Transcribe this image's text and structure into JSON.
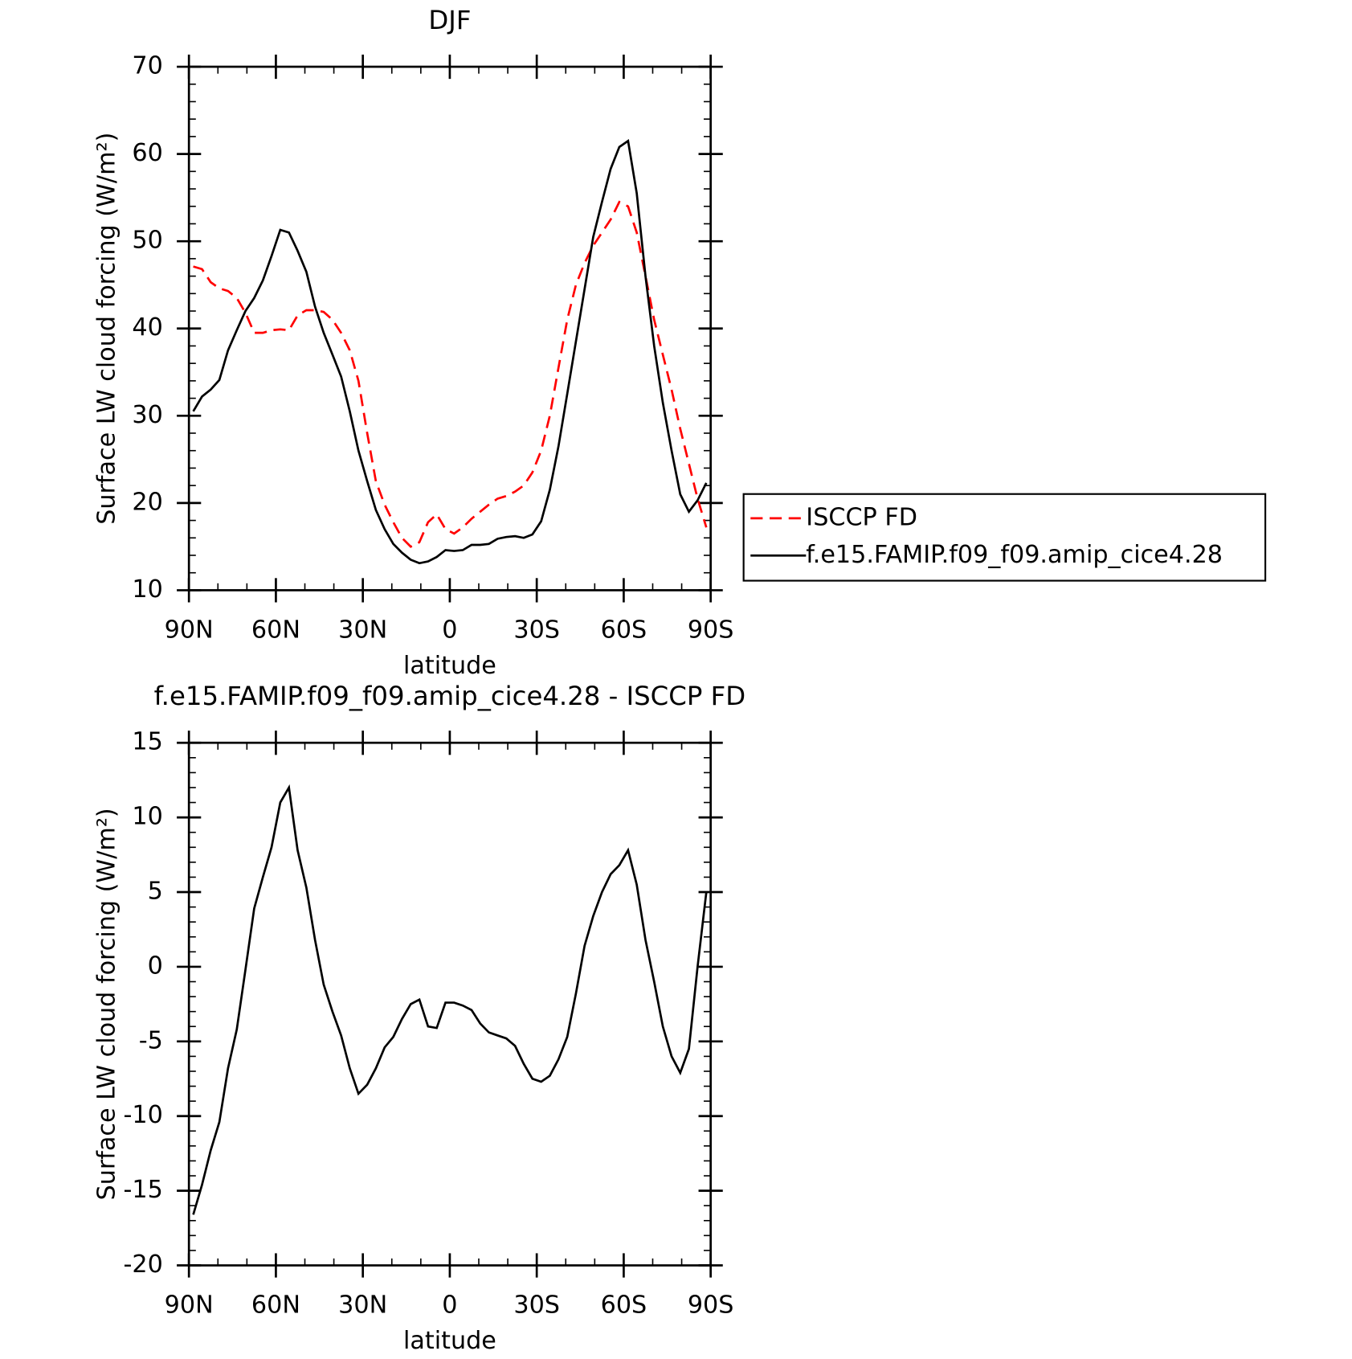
{
  "chart_data": [
    {
      "type": "line",
      "title": "DJF",
      "xlabel": "latitude",
      "ylabel": "Surface LW cloud forcing (W/m²)",
      "xlim": [
        90,
        -90
      ],
      "xticks": [
        {
          "value": 90,
          "label": "90N"
        },
        {
          "value": 60,
          "label": "60N"
        },
        {
          "value": 30,
          "label": "30N"
        },
        0,
        {
          "value": -30,
          "label": "30S"
        },
        {
          "value": -60,
          "label": "60S"
        },
        {
          "value": -90,
          "label": "90S"
        }
      ],
      "ylim": [
        10,
        70
      ],
      "yticks": [
        10,
        20,
        30,
        40,
        50,
        60,
        70
      ],
      "legend": "right",
      "x": [
        88.5,
        85.5,
        82.5,
        79.5,
        76.5,
        73.5,
        70.5,
        67.5,
        64.5,
        61.5,
        58.5,
        55.5,
        52.5,
        49.5,
        46.5,
        43.5,
        40.5,
        37.5,
        34.5,
        31.5,
        28.5,
        25.5,
        22.5,
        19.5,
        16.5,
        13.5,
        10.5,
        7.5,
        4.5,
        1.5,
        -1.5,
        -4.5,
        -7.5,
        -10.5,
        -13.5,
        -16.5,
        -19.5,
        -22.5,
        -25.5,
        -28.5,
        -31.5,
        -34.5,
        -37.5,
        -40.5,
        -43.5,
        -46.5,
        -49.5,
        -52.5,
        -55.5,
        -58.5,
        -61.5,
        -64.5,
        -67.5,
        -70.5,
        -73.5,
        -76.5,
        -79.5,
        -82.5,
        -85.5,
        -88.5
      ],
      "series": [
        {
          "name": "ISCCP FD",
          "color": "#ff0000",
          "dashed": true,
          "values": [
            47.1,
            46.8,
            45.3,
            44.6,
            44.3,
            43.5,
            41.8,
            39.5,
            39.5,
            39.8,
            39.9,
            39.8,
            41.5,
            42.1,
            42.1,
            41.9,
            41.0,
            39.5,
            37.5,
            34.0,
            28.0,
            22.5,
            19.8,
            17.8,
            16.0,
            15.0,
            15.5,
            17.8,
            18.7,
            17.0,
            16.5,
            17.2,
            18.2,
            19.0,
            19.8,
            20.5,
            20.8,
            21.3,
            22.0,
            23.5,
            26.0,
            30.0,
            35.5,
            41.0,
            45.0,
            47.5,
            49.5,
            51.0,
            52.5,
            54.5,
            54.0,
            51.0,
            46.0,
            41.0,
            37.0,
            33.0,
            28.5,
            24.5,
            20.5,
            17.2
          ]
        },
        {
          "name": "f.e15.FAMIP.f09_f09.amip_cice4.28",
          "color": "#000000",
          "dashed": false,
          "values": [
            30.5,
            32.2,
            33.0,
            34.1,
            37.5,
            39.8,
            42.0,
            43.5,
            45.5,
            48.3,
            51.3,
            51.0,
            48.9,
            46.5,
            42.5,
            39.5,
            37.0,
            34.5,
            30.5,
            26.0,
            22.5,
            19.2,
            17.0,
            15.3,
            14.3,
            13.5,
            13.1,
            13.3,
            13.8,
            14.6,
            14.5,
            14.6,
            15.2,
            15.2,
            15.3,
            15.9,
            16.1,
            16.2,
            16.0,
            16.4,
            17.9,
            21.5,
            26.5,
            32.5,
            38.5,
            44.5,
            50.5,
            54.5,
            58.3,
            60.8,
            61.5,
            55.5,
            46.0,
            38.0,
            31.5,
            26.0,
            21.0,
            19.0,
            20.3,
            22.3
          ]
        }
      ]
    },
    {
      "type": "line",
      "title": "f.e15.FAMIP.f09_f09.amip_cice4.28 - ISCCP FD",
      "xlabel": "latitude",
      "ylabel": "Surface LW cloud forcing (W/m²)",
      "xlim": [
        90,
        -90
      ],
      "xticks": [
        {
          "value": 90,
          "label": "90N"
        },
        {
          "value": 60,
          "label": "60N"
        },
        {
          "value": 30,
          "label": "30N"
        },
        0,
        {
          "value": -30,
          "label": "30S"
        },
        {
          "value": -60,
          "label": "60S"
        },
        {
          "value": -90,
          "label": "90S"
        }
      ],
      "ylim": [
        -20,
        15
      ],
      "yticks": [
        -20,
        -15,
        -10,
        -5,
        0,
        5,
        10,
        15
      ],
      "x": [
        88.5,
        85.5,
        82.5,
        79.5,
        76.5,
        73.5,
        70.5,
        67.5,
        64.5,
        61.5,
        58.5,
        55.5,
        52.5,
        49.5,
        46.5,
        43.5,
        40.5,
        37.5,
        34.5,
        31.5,
        28.5,
        25.5,
        22.5,
        19.5,
        16.5,
        13.5,
        10.5,
        7.5,
        4.5,
        1.5,
        -1.5,
        -4.5,
        -7.5,
        -10.5,
        -13.5,
        -16.5,
        -19.5,
        -22.5,
        -25.5,
        -28.5,
        -31.5,
        -34.5,
        -37.5,
        -40.5,
        -43.5,
        -46.5,
        -49.5,
        -52.5,
        -55.5,
        -58.5,
        -61.5,
        -64.5,
        -67.5,
        -70.5,
        -73.5,
        -76.5,
        -79.5,
        -82.5,
        -85.5,
        -88.5
      ],
      "series": [
        {
          "color": "#000000",
          "dashed": false,
          "values": [
            -16.6,
            -14.6,
            -12.3,
            -10.4,
            -6.8,
            -4.2,
            -0.2,
            3.9,
            6.0,
            8.0,
            11.0,
            12.0,
            7.8,
            5.3,
            1.8,
            -1.2,
            -3.0,
            -4.6,
            -6.8,
            -8.5,
            -7.9,
            -6.8,
            -5.4,
            -4.7,
            -3.5,
            -2.5,
            -2.2,
            -4.0,
            -4.1,
            -2.4,
            -2.4,
            -2.6,
            -2.9,
            -3.8,
            -4.4,
            -4.6,
            -4.8,
            -5.3,
            -6.5,
            -7.5,
            -7.7,
            -7.3,
            -6.2,
            -4.7,
            -1.8,
            1.4,
            3.4,
            5.0,
            6.2,
            6.8,
            7.8,
            5.5,
            1.8,
            -1.0,
            -4.0,
            -6.0,
            -7.1,
            -5.5,
            0.0,
            5.0
          ]
        }
      ]
    }
  ]
}
